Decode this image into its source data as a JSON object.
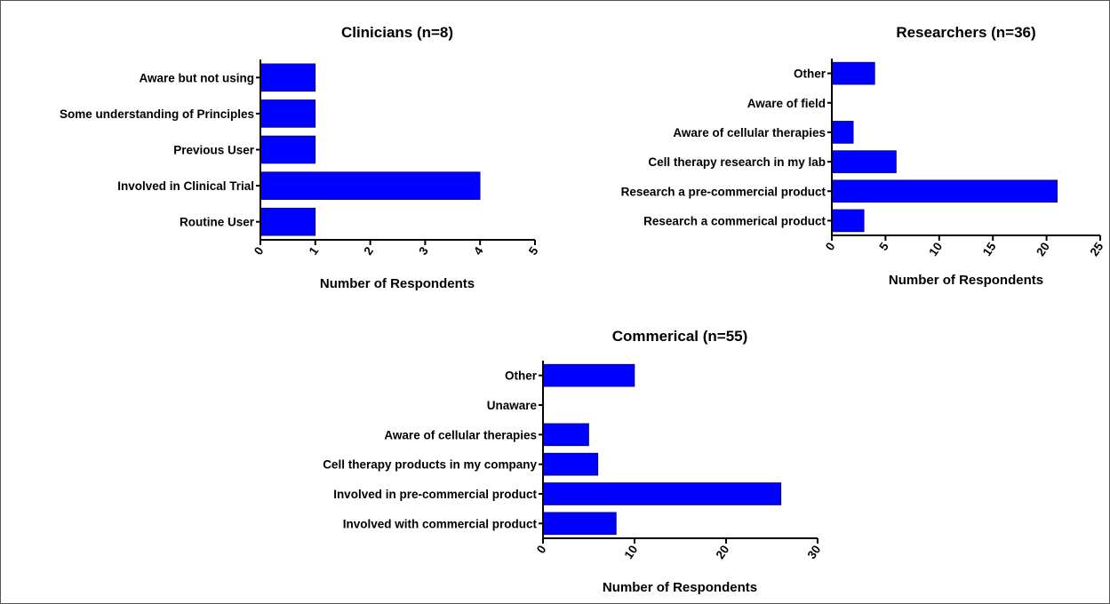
{
  "chart_data": [
    {
      "type": "bar",
      "orientation": "horizontal",
      "title": "Clinicians (n=8)",
      "xlabel": "Number of Respondents",
      "ylabel": "",
      "categories": [
        "Aware but not using",
        "Some understanding of Principles",
        "Previous User",
        "Involved in Clinical Trial",
        "Routine User"
      ],
      "values": [
        1,
        1,
        1,
        4,
        1
      ],
      "xlim": [
        0,
        5
      ],
      "xticks": [
        0,
        1,
        2,
        3,
        4,
        5
      ],
      "bar_color": "#0000ff",
      "grid": false,
      "legend": "none"
    },
    {
      "type": "bar",
      "orientation": "horizontal",
      "title": "Researchers (n=36)",
      "xlabel": "Number of Respondents",
      "ylabel": "",
      "categories": [
        "Other",
        "Aware of field",
        "Aware of cellular therapies",
        "Cell therapy research in my lab",
        "Research a pre-commercial product",
        "Research a commerical product"
      ],
      "values": [
        4,
        0,
        2,
        6,
        21,
        3
      ],
      "xlim": [
        0,
        25
      ],
      "xticks": [
        0,
        5,
        10,
        15,
        20,
        25
      ],
      "bar_color": "#0000ff",
      "grid": false,
      "legend": "none"
    },
    {
      "type": "bar",
      "orientation": "horizontal",
      "title": "Commerical (n=55)",
      "xlabel": "Number of Respondents",
      "ylabel": "",
      "categories": [
        "Other",
        "Unaware",
        "Aware of cellular therapies",
        "Cell therapy products in my company",
        "Involved in pre-commercial product",
        "Involved with commercial product"
      ],
      "values": [
        10,
        0,
        5,
        6,
        26,
        8
      ],
      "xlim": [
        0,
        30
      ],
      "xticks": [
        0,
        10,
        20,
        30
      ],
      "bar_color": "#0000ff",
      "grid": false,
      "legend": "none"
    }
  ]
}
